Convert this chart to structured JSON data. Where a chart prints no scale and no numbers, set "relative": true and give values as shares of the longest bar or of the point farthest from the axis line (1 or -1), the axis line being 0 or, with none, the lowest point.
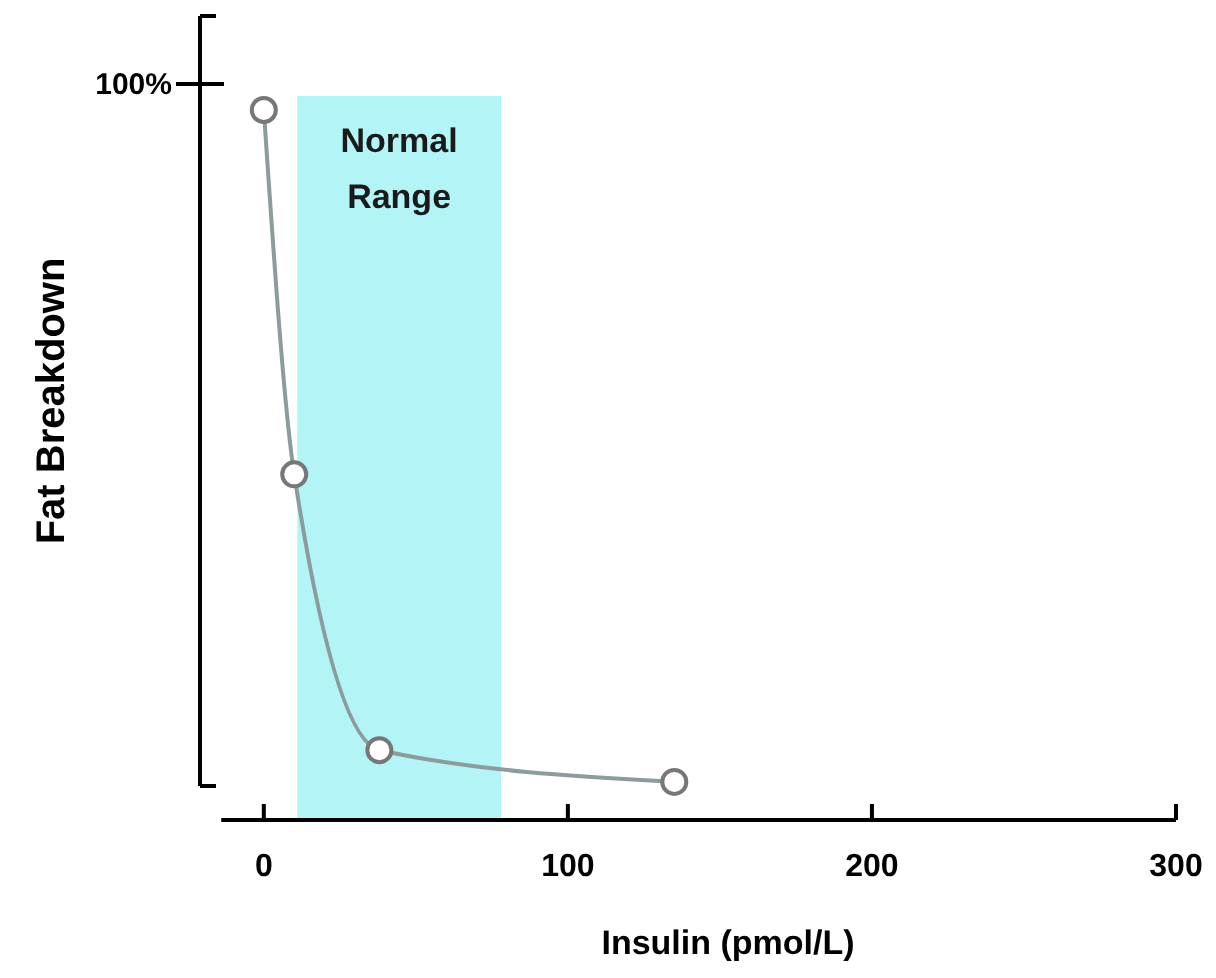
{
  "chart_data": {
    "type": "line",
    "ylabel": "Fat Breakdown",
    "xlabel": "Insulin (pmol/L)",
    "relative": true,
    "x": [
      0,
      10,
      38,
      135
    ],
    "series": [
      {
        "color": "#8c9c9c",
        "values": [
          1,
          0.461,
          0.053,
          0.006
        ]
      }
    ],
    "xlim": [
      -14,
      300
    ],
    "xticks": [
      0,
      100,
      200,
      300
    ],
    "marker": "circle",
    "line_style": "solid",
    "grid": false,
    "bands": [
      {
        "axis": "x",
        "from": 11,
        "to": 78,
        "label": "Normal\nRange",
        "color": "#b3f5f7"
      }
    ],
    "annotations": [
      "100%"
    ]
  }
}
